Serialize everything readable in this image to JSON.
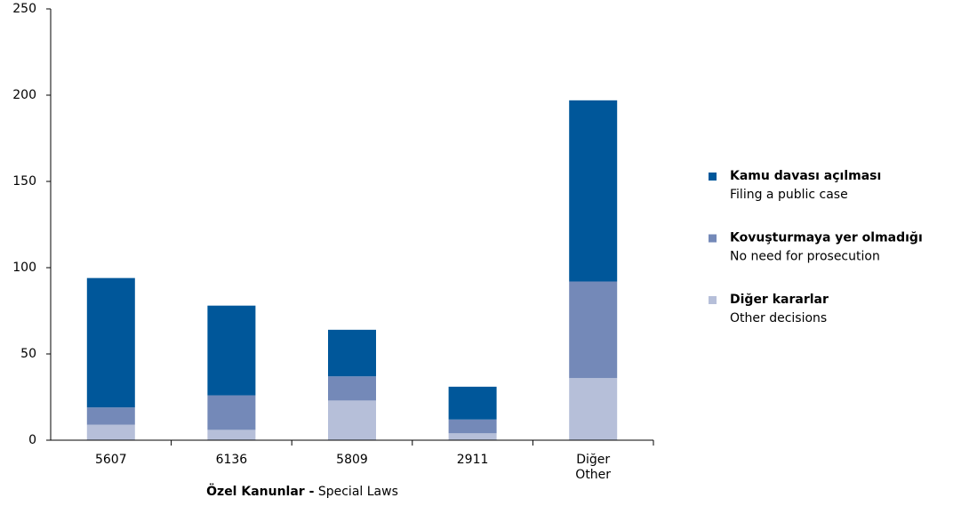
{
  "chart_data": {
    "type": "stacked_bar",
    "categories": [
      "5607",
      "6136",
      "5809",
      "2911",
      "Diğer\nOther"
    ],
    "series": [
      {
        "name": "Kamu davası açılması",
        "translation": "Filing a public case",
        "color": "#00579a",
        "values": [
          75,
          52,
          27,
          19,
          105
        ]
      },
      {
        "name": "Kovuşturmaya yer olmadığı",
        "translation": "No need for prosecution",
        "color": "#7489b8",
        "values": [
          10,
          20,
          14,
          8,
          56
        ]
      },
      {
        "name": "Diğer kararlar",
        "translation": "Other decisions",
        "color": "#b6bfd9",
        "values": [
          9,
          6,
          23,
          4,
          36
        ]
      }
    ],
    "x_label": {
      "bold": "Özel Kanunlar -",
      "plain": "Special Laws"
    },
    "ylim": [
      0,
      250
    ],
    "yticks": [
      0,
      50,
      100,
      150,
      200,
      250
    ],
    "grid": false,
    "legend": "right"
  }
}
